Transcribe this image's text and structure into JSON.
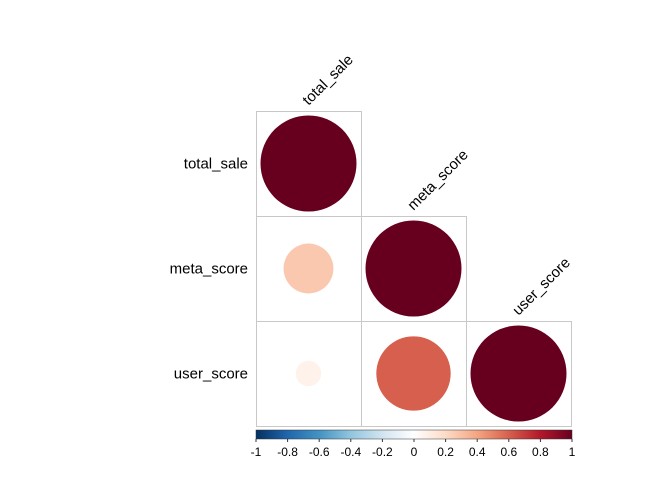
{
  "chart_data": {
    "type": "heatmap",
    "subtype": "correlation-circle-upper-triangle",
    "variables": [
      "total_sale",
      "meta_score",
      "user_score"
    ],
    "cells": [
      {
        "row": "total_sale",
        "col": "total_sale",
        "value": 1.0
      },
      {
        "row": "meta_score",
        "col": "total_sale",
        "value": 0.27
      },
      {
        "row": "meta_score",
        "col": "meta_score",
        "value": 1.0
      },
      {
        "row": "user_score",
        "col": "total_sale",
        "value": 0.07
      },
      {
        "row": "user_score",
        "col": "meta_score",
        "value": 0.6
      },
      {
        "row": "user_score",
        "col": "user_score",
        "value": 1.0
      }
    ],
    "colorbar": {
      "range": [
        -1,
        1
      ],
      "tick_labels": [
        "-1",
        "-0.8",
        "-0.6",
        "-0.4",
        "-0.2",
        "0",
        "0.2",
        "0.4",
        "0.6",
        "0.8",
        "1"
      ],
      "tick_values": [
        -1,
        -0.8,
        -0.6,
        -0.4,
        -0.2,
        0,
        0.2,
        0.4,
        0.6,
        0.8,
        1
      ],
      "colors": [
        "#053061",
        "#2166AC",
        "#4393C3",
        "#92C5DE",
        "#D1E5F0",
        "#FFFFFF",
        "#FDDBC7",
        "#F4A582",
        "#D6604D",
        "#B2182B",
        "#67001F"
      ],
      "position": "bottom"
    },
    "grid": true
  }
}
